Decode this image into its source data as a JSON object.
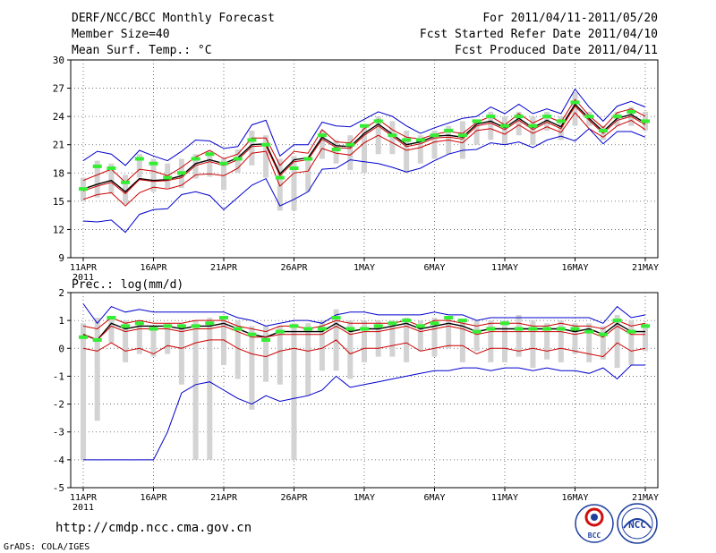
{
  "header": {
    "title": "DERF/NCC/BCC Monthly Forecast",
    "member_size": "Member Size=40",
    "variable": "Mean Surf. Temp.: °C",
    "period": "For 2011/04/11-2011/05/20",
    "refer_date": "Fcst Started Refer Date 2011/04/10",
    "produced_date": "Fcst Produced Date 2011/04/11"
  },
  "footer": {
    "url": "http://cmdp.ncc.cma.gov.cn",
    "credit": "GrADS: COLA/IGES",
    "logo_bcc": "BCC",
    "logo_ncc": "NCC"
  },
  "colors": {
    "ensemble_mean": "#000000",
    "median": "#cc0000",
    "member_bounds": "#cc0000",
    "extremes": "#0000cc",
    "box": "#d3d3d3",
    "observed": "#33ee33",
    "grid": "#555555"
  },
  "chart_data": [
    {
      "id": "temperature",
      "type": "line",
      "title": "Mean Surf. Temp.: °C",
      "xlabel": "",
      "ylabel": "°C",
      "ylim": [
        9,
        30
      ],
      "yticks": [
        9,
        12,
        15,
        18,
        21,
        24,
        27,
        30
      ],
      "x": {
        "start_day": 0,
        "end_day": 40
      },
      "xticks": [
        {
          "day": 0,
          "label": "11APR",
          "sublabel": "2011"
        },
        {
          "day": 5,
          "label": "16APR"
        },
        {
          "day": 10,
          "label": "21APR"
        },
        {
          "day": 15,
          "label": "26APR"
        },
        {
          "day": 20,
          "label": "1MAY"
        },
        {
          "day": 25,
          "label": "6MAY"
        },
        {
          "day": 30,
          "label": "11MAY"
        },
        {
          "day": 35,
          "label": "16MAY"
        },
        {
          "day": 40,
          "label": "21MAY"
        }
      ],
      "series": [
        {
          "name": "Ensemble maximum",
          "color": "#0000cc",
          "values": [
            19.3,
            20.3,
            20.0,
            18.8,
            20.4,
            19.8,
            19.3,
            20.3,
            21.5,
            21.4,
            20.6,
            20.8,
            23.1,
            23.6,
            19.8,
            21.0,
            21.0,
            23.4,
            23.0,
            22.9,
            23.7,
            24.5,
            24.0,
            23.0,
            22.2,
            22.8,
            23.3,
            23.8,
            24.0,
            25.0,
            24.3,
            25.3,
            24.3,
            24.8,
            24.3,
            26.9,
            25.0,
            23.5,
            25.1,
            25.6,
            25.0
          ]
        },
        {
          "name": "Upper bound",
          "color": "#cc0000",
          "values": [
            17.2,
            17.8,
            18.4,
            17.0,
            18.4,
            18.2,
            17.7,
            18.6,
            19.7,
            20.4,
            19.5,
            20.0,
            21.7,
            21.7,
            18.8,
            20.3,
            20.1,
            22.6,
            21.3,
            21.2,
            22.7,
            23.7,
            22.6,
            21.8,
            21.6,
            22.1,
            22.4,
            22.2,
            23.4,
            24.0,
            23.1,
            24.3,
            23.3,
            24.0,
            23.4,
            25.8,
            24.1,
            22.8,
            24.4,
            24.8,
            24.0
          ]
        },
        {
          "name": "Ensemble mean",
          "color": "#000000",
          "values": [
            16.3,
            16.8,
            17.2,
            16.0,
            17.4,
            17.2,
            17.3,
            17.7,
            19.0,
            19.4,
            19.0,
            19.6,
            21.0,
            21.1,
            17.9,
            19.4,
            19.6,
            21.8,
            20.9,
            20.8,
            22.2,
            23.2,
            22.1,
            21.0,
            21.3,
            21.9,
            22.0,
            21.8,
            23.2,
            23.5,
            22.8,
            23.8,
            22.8,
            23.6,
            22.9,
            25.3,
            23.8,
            22.4,
            23.8,
            24.2,
            23.3
          ]
        },
        {
          "name": "Ensemble median",
          "color": "#cc0000",
          "values": [
            16.1,
            16.6,
            17.0,
            15.8,
            17.3,
            17.1,
            17.2,
            17.5,
            18.8,
            19.2,
            18.8,
            19.4,
            20.8,
            20.9,
            17.7,
            19.2,
            19.4,
            21.6,
            20.7,
            20.6,
            22.0,
            23.0,
            21.9,
            20.8,
            21.1,
            21.7,
            21.8,
            21.6,
            23.0,
            23.3,
            22.6,
            23.6,
            22.6,
            23.4,
            22.7,
            25.1,
            23.6,
            22.2,
            23.6,
            24.0,
            23.1
          ]
        },
        {
          "name": "Lower bound",
          "color": "#cc0000",
          "values": [
            15.2,
            15.7,
            15.9,
            14.5,
            15.9,
            16.5,
            16.3,
            16.7,
            17.8,
            17.9,
            17.7,
            18.5,
            20.1,
            20.3,
            16.6,
            18.0,
            18.2,
            20.6,
            20.1,
            19.9,
            21.2,
            22.0,
            21.2,
            20.4,
            20.7,
            21.3,
            21.5,
            21.2,
            22.5,
            22.7,
            22.1,
            23.1,
            22.2,
            22.9,
            22.3,
            24.4,
            22.7,
            21.8,
            23.0,
            23.6,
            22.6
          ]
        },
        {
          "name": "Ensemble minimum",
          "color": "#0000cc",
          "values": [
            12.9,
            12.8,
            13.0,
            11.7,
            13.6,
            14.1,
            14.2,
            15.7,
            16.0,
            15.6,
            14.1,
            15.4,
            16.7,
            17.4,
            14.5,
            15.2,
            16.0,
            18.4,
            18.5,
            19.4,
            19.2,
            19.0,
            18.6,
            18.1,
            18.5,
            19.3,
            20.0,
            20.4,
            20.5,
            21.2,
            21.0,
            21.3,
            20.7,
            21.5,
            21.9,
            21.4,
            22.7,
            21.1,
            22.4,
            22.4,
            21.8
          ]
        }
      ],
      "boxes": {
        "color": "#d3d3d3",
        "low": [
          15.0,
          15.4,
          15.8,
          14.7,
          17.5,
          16.0,
          16.4,
          16.4,
          17.4,
          17.6,
          16.2,
          18.0,
          18.8,
          17.5,
          14.0,
          14.0,
          16.0,
          19.5,
          19.0,
          18.3,
          18.0,
          20.0,
          20.0,
          18.0,
          19.0,
          19.5,
          20.0,
          19.5,
          21.0,
          21.5,
          21.0,
          22.0,
          21.0,
          22.5,
          21.5,
          23.0,
          23.0,
          21.5,
          23.0,
          23.0,
          22.5
        ],
        "high": [
          17.5,
          19.3,
          19.0,
          17.8,
          20.0,
          19.5,
          19.0,
          19.5,
          20.0,
          20.3,
          19.5,
          20.5,
          22.5,
          22.0,
          19.5,
          19.8,
          19.5,
          22.5,
          21.5,
          22.0,
          23.0,
          24.0,
          23.5,
          22.5,
          22.0,
          22.5,
          23.0,
          23.5,
          23.5,
          24.5,
          24.0,
          24.5,
          24.0,
          24.5,
          24.0,
          26.5,
          24.5,
          23.0,
          24.5,
          25.0,
          24.5
        ]
      },
      "observed": {
        "color": "#33ee33",
        "values": [
          16.3,
          18.7,
          18.5,
          17.0,
          19.5,
          19.0,
          17.5,
          18.0,
          19.5,
          20.0,
          19.0,
          19.5,
          21.5,
          21.0,
          17.5,
          18.5,
          19.5,
          22.0,
          20.5,
          21.0,
          23.0,
          23.5,
          22.0,
          21.5,
          21.5,
          22.0,
          22.5,
          22.0,
          23.5,
          24.0,
          23.0,
          24.0,
          23.0,
          24.0,
          23.5,
          25.5,
          24.0,
          22.5,
          24.0,
          24.5,
          23.5
        ]
      }
    },
    {
      "id": "precipitation",
      "type": "line",
      "title": "Prec.: log(mm/d)",
      "xlabel": "",
      "ylabel": "log(mm/d)",
      "ylim": [
        -5,
        2
      ],
      "yticks": [
        -5,
        -4,
        -3,
        -2,
        -1,
        0,
        1,
        2
      ],
      "x": {
        "start_day": 0,
        "end_day": 40
      },
      "xticks": [
        {
          "day": 0,
          "label": "11APR",
          "sublabel": "2011"
        },
        {
          "day": 5,
          "label": "16APR"
        },
        {
          "day": 10,
          "label": "21APR"
        },
        {
          "day": 15,
          "label": "26APR"
        },
        {
          "day": 20,
          "label": "1MAY"
        },
        {
          "day": 25,
          "label": "6MAY"
        },
        {
          "day": 30,
          "label": "11MAY"
        },
        {
          "day": 35,
          "label": "16MAY"
        },
        {
          "day": 40,
          "label": "21MAY"
        }
      ],
      "series": [
        {
          "name": "Ensemble maximum",
          "color": "#0000cc",
          "values": [
            1.6,
            0.9,
            1.5,
            1.3,
            1.4,
            1.3,
            1.3,
            1.3,
            1.3,
            1.3,
            1.3,
            1.1,
            1.0,
            0.8,
            0.9,
            1.0,
            1.0,
            0.9,
            1.2,
            1.3,
            1.3,
            1.2,
            1.2,
            1.2,
            1.2,
            1.3,
            1.2,
            1.2,
            1.0,
            1.1,
            1.1,
            1.1,
            1.1,
            1.1,
            1.1,
            1.1,
            1.1,
            0.9,
            1.5,
            1.1,
            1.2
          ]
        },
        {
          "name": "Upper bound",
          "color": "#cc0000",
          "values": [
            0.8,
            0.7,
            1.1,
            0.9,
            1.0,
            0.9,
            0.9,
            0.9,
            1.0,
            1.0,
            1.0,
            0.8,
            0.7,
            0.6,
            0.8,
            0.8,
            0.7,
            0.8,
            1.0,
            0.9,
            0.9,
            0.9,
            0.9,
            1.0,
            0.8,
            1.0,
            1.0,
            0.9,
            0.8,
            0.9,
            0.9,
            0.9,
            0.8,
            0.8,
            0.9,
            0.8,
            0.8,
            0.7,
            1.0,
            0.8,
            0.9
          ]
        },
        {
          "name": "Ensemble mean",
          "color": "#000000",
          "values": [
            0.5,
            0.3,
            0.9,
            0.7,
            0.8,
            0.8,
            0.8,
            0.7,
            0.8,
            0.8,
            0.9,
            0.7,
            0.5,
            0.4,
            0.6,
            0.6,
            0.6,
            0.6,
            0.9,
            0.6,
            0.7,
            0.7,
            0.8,
            0.9,
            0.7,
            0.8,
            0.9,
            0.8,
            0.6,
            0.7,
            0.7,
            0.7,
            0.7,
            0.7,
            0.7,
            0.6,
            0.7,
            0.5,
            0.9,
            0.6,
            0.6
          ]
        },
        {
          "name": "Ensemble median",
          "color": "#cc0000",
          "values": [
            0.5,
            0.3,
            0.8,
            0.6,
            0.7,
            0.7,
            0.7,
            0.6,
            0.7,
            0.7,
            0.8,
            0.6,
            0.4,
            0.4,
            0.5,
            0.5,
            0.5,
            0.5,
            0.8,
            0.5,
            0.6,
            0.6,
            0.7,
            0.8,
            0.6,
            0.7,
            0.8,
            0.7,
            0.5,
            0.6,
            0.6,
            0.6,
            0.6,
            0.6,
            0.6,
            0.5,
            0.6,
            0.4,
            0.8,
            0.5,
            0.5
          ]
        },
        {
          "name": "Lower bound",
          "color": "#cc0000",
          "values": [
            0.0,
            -0.1,
            0.2,
            -0.1,
            0.0,
            -0.2,
            0.1,
            0.0,
            0.2,
            0.3,
            0.3,
            0.0,
            -0.2,
            -0.3,
            -0.1,
            0.0,
            -0.1,
            0.0,
            0.3,
            -0.2,
            0.0,
            0.0,
            0.1,
            0.2,
            -0.1,
            0.0,
            0.1,
            0.1,
            -0.2,
            0.0,
            0.0,
            -0.1,
            0.0,
            -0.1,
            0.0,
            -0.1,
            -0.2,
            -0.3,
            0.2,
            -0.1,
            0.0
          ]
        },
        {
          "name": "Ensemble minimum",
          "color": "#0000cc",
          "values": [
            -4.0,
            -4.0,
            -4.0,
            -4.0,
            -4.0,
            -4.0,
            -3.0,
            -1.6,
            -1.3,
            -1.2,
            -1.5,
            -1.8,
            -2.0,
            -1.7,
            -1.9,
            -1.8,
            -1.7,
            -1.5,
            -1.0,
            -1.4,
            -1.3,
            -1.2,
            -1.1,
            -1.0,
            -0.9,
            -0.8,
            -0.8,
            -0.7,
            -0.7,
            -0.8,
            -0.7,
            -0.7,
            -0.8,
            -0.7,
            -0.8,
            -0.8,
            -0.9,
            -0.7,
            -1.1,
            -0.6,
            -0.6
          ]
        }
      ],
      "boxes": {
        "color": "#d3d3d3",
        "low": [
          -4.0,
          -2.6,
          0.2,
          -0.5,
          -0.2,
          -0.3,
          -0.2,
          -1.3,
          -4.0,
          -4.0,
          -0.6,
          -1.1,
          -2.2,
          -1.2,
          -1.3,
          -4.0,
          -1.7,
          -0.8,
          -0.8,
          -1.1,
          -0.5,
          -0.3,
          -0.3,
          -0.5,
          -0.1,
          -0.3,
          0.0,
          -0.5,
          -0.1,
          -0.5,
          -0.5,
          -0.3,
          -0.7,
          -0.4,
          -0.5,
          -0.2,
          -0.5,
          -0.4,
          -0.7,
          -0.6,
          -0.1
        ],
        "high": [
          0.9,
          1.1,
          1.1,
          1.0,
          1.0,
          0.8,
          0.9,
          0.9,
          1.0,
          1.1,
          1.1,
          1.0,
          0.8,
          0.8,
          0.8,
          0.9,
          0.9,
          1.0,
          1.4,
          1.0,
          1.0,
          1.0,
          1.0,
          1.1,
          1.0,
          1.1,
          1.1,
          1.0,
          1.0,
          1.0,
          1.0,
          1.2,
          1.0,
          0.9,
          1.0,
          0.9,
          0.9,
          0.8,
          1.2,
          1.0,
          0.9
        ]
      },
      "observed": {
        "color": "#33ee33",
        "values": [
          0.4,
          0.3,
          1.1,
          0.8,
          0.9,
          0.7,
          0.8,
          0.8,
          0.8,
          0.9,
          1.1,
          0.7,
          0.5,
          0.3,
          0.6,
          0.8,
          0.7,
          0.7,
          1.1,
          0.7,
          0.7,
          0.8,
          0.9,
          1.0,
          0.8,
          0.9,
          1.1,
          1.0,
          0.6,
          0.7,
          0.9,
          0.7,
          0.7,
          0.7,
          0.7,
          0.7,
          0.6,
          0.5,
          1.0,
          0.6,
          0.8
        ]
      }
    }
  ]
}
